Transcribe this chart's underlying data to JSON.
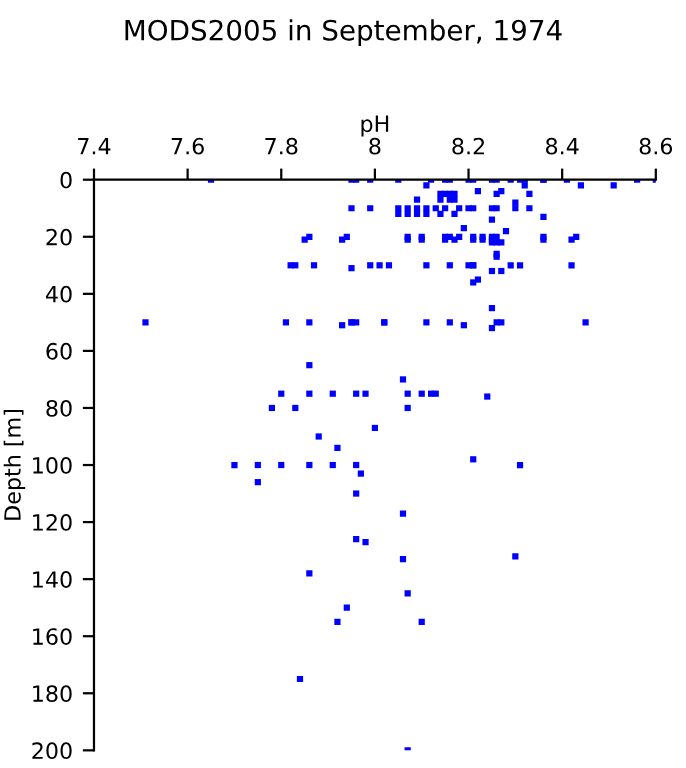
{
  "chart_data": {
    "type": "scatter",
    "title": "MODS2005 in September, 1974",
    "xlabel": "pH",
    "ylabel": "Depth [m]",
    "xlim": [
      7.4,
      8.6
    ],
    "xticks": [
      7.4,
      7.6,
      7.8,
      8,
      8.2,
      8.4,
      8.6
    ],
    "ylim": [
      200,
      0
    ],
    "yticks": [
      0,
      20,
      40,
      60,
      80,
      100,
      120,
      140,
      160,
      180,
      200
    ],
    "grid": false,
    "marker": "square",
    "series": [
      {
        "color": "#0000ff",
        "x": [
          7.65,
          7.95,
          7.96,
          7.99,
          8.05,
          8.12,
          8.15,
          8.16,
          8.2,
          8.21,
          8.25,
          8.26,
          8.29,
          8.31,
          8.32,
          8.36,
          8.36,
          8.41,
          8.56,
          8.6,
          8.44,
          8.51,
          8.11,
          8.22,
          8.27,
          8.32,
          8.14,
          8.15,
          8.16,
          8.17,
          8.33,
          8.09,
          8.14,
          8.16,
          8.17,
          8.3,
          8.26,
          7.95,
          7.99,
          8.05,
          8.07,
          8.09,
          8.11,
          8.13,
          8.15,
          8.18,
          8.2,
          8.21,
          8.25,
          8.26,
          8.3,
          8.33,
          8.05,
          8.07,
          8.09,
          8.11,
          8.14,
          8.17,
          8.25,
          8.36,
          8.19,
          7.86,
          7.94,
          8.07,
          8.1,
          8.15,
          8.16,
          8.18,
          8.21,
          8.23,
          8.25,
          8.26,
          8.28,
          8.36,
          8.43,
          8.25,
          8.26,
          8.26,
          7.85,
          7.93,
          8.07,
          8.1,
          8.15,
          8.17,
          8.21,
          8.23,
          8.25,
          8.27,
          8.36,
          8.42,
          8.26,
          7.82,
          7.83,
          7.87,
          7.95,
          7.99,
          8.01,
          8.03,
          8.11,
          8.16,
          8.2,
          8.21,
          8.21,
          8.25,
          8.27,
          8.29,
          8.31,
          8.42,
          8.22,
          8.21,
          8.25,
          7.51,
          7.81,
          7.86,
          7.93,
          7.95,
          7.95,
          7.96,
          8.02,
          8.02,
          8.11,
          8.16,
          8.19,
          8.26,
          8.27,
          8.25,
          8.45,
          7.86,
          8.06,
          7.8,
          7.86,
          7.91,
          7.96,
          7.98,
          8.07,
          8.1,
          8.12,
          8.13,
          8.24,
          7.78,
          7.83,
          8.07,
          8.0,
          7.88,
          7.92,
          7.7,
          7.75,
          7.8,
          7.86,
          7.91,
          7.96,
          8.21,
          8.31,
          7.97,
          7.75,
          7.96,
          8.06,
          7.96,
          7.98,
          8.3,
          8.06,
          7.86,
          8.07,
          7.94,
          7.92,
          8.1,
          7.84,
          8.07
        ],
        "values": [
          0,
          0,
          0,
          0,
          0,
          0,
          0,
          0,
          0,
          0,
          0,
          0,
          0,
          0,
          0,
          0,
          0,
          0,
          0,
          0,
          2,
          2,
          2,
          4,
          4,
          2,
          5,
          5,
          5,
          5,
          5,
          7,
          7,
          7,
          7,
          8,
          5,
          10,
          10,
          10,
          10,
          10,
          10,
          10,
          10,
          10,
          10,
          10,
          10,
          10,
          10,
          10,
          12,
          12,
          12,
          12,
          12,
          12,
          14,
          13,
          17,
          20,
          20,
          20,
          20,
          20,
          20,
          20,
          20,
          20,
          20,
          20,
          18,
          20,
          20,
          22,
          22,
          26,
          21,
          21,
          21,
          21,
          21,
          21,
          21,
          21,
          21,
          22,
          21,
          21,
          27,
          30,
          30,
          30,
          31,
          30,
          30,
          30,
          30,
          30,
          30,
          30,
          30,
          32,
          32,
          30,
          30,
          30,
          35,
          36,
          45,
          50,
          50,
          50,
          51,
          50,
          50,
          50,
          50,
          50,
          50,
          50,
          51,
          50,
          50,
          52,
          50,
          65,
          70,
          75,
          75,
          75,
          75,
          75,
          75,
          75,
          75,
          75,
          76,
          80,
          80,
          80,
          87,
          90,
          94,
          100,
          100,
          100,
          100,
          100,
          100,
          98,
          100,
          103,
          106,
          110,
          117,
          126,
          127,
          132,
          133,
          138,
          145,
          150,
          155,
          155,
          175,
          200
        ]
      }
    ]
  }
}
